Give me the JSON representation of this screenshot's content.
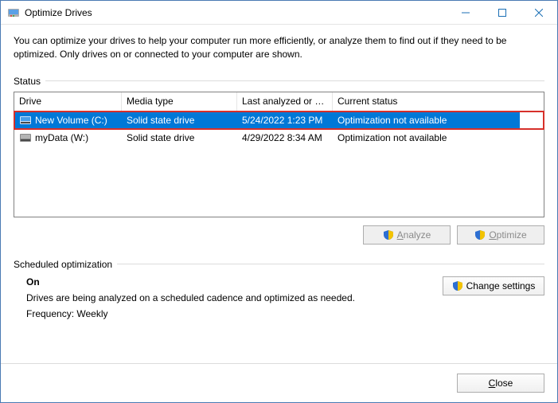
{
  "window": {
    "title": "Optimize Drives",
    "titlebar_bg": "#ffffff",
    "border_color": "#4a7ab3",
    "control_color": "#1b6fb5"
  },
  "description": "You can optimize your drives to help your computer run more efficiently, or analyze them to find out if they need to be optimized. Only drives on or connected to your computer are shown.",
  "sections": {
    "status_label": "Status",
    "sched_label": "Scheduled optimization"
  },
  "grid": {
    "columns": {
      "drive": "Drive",
      "media": "Media type",
      "last": "Last analyzed or o...",
      "status": "Current status"
    },
    "rows": [
      {
        "selected": true,
        "highlight_border": "#d7302a",
        "sel_bg": "#0078d7",
        "sel_fg": "#ffffff",
        "icon": "drive-ssd",
        "drive": "New Volume (C:)",
        "media": "Solid state drive",
        "last": "5/24/2022 1:23 PM",
        "status": "Optimization not available"
      },
      {
        "selected": false,
        "icon": "drive-ssd",
        "drive": "myData (W:)",
        "media": "Solid state drive",
        "last": "4/29/2022 8:34 AM",
        "status": "Optimization not available"
      }
    ]
  },
  "buttons": {
    "analyze": {
      "text": "nalyze",
      "accel": "A",
      "enabled": false,
      "shield": true
    },
    "optimize": {
      "text": "ptimize",
      "accel": "O",
      "enabled": false,
      "shield": true
    },
    "change": {
      "text": "Change settings",
      "shield": true
    },
    "close": {
      "text": "lose",
      "accel": "C"
    }
  },
  "schedule": {
    "on": "On",
    "desc": "Drives are being analyzed on a scheduled cadence and optimized as needed.",
    "freq": "Frequency: Weekly"
  },
  "colors": {
    "divider": "#dcdcdc",
    "grid_border": "#828282",
    "disabled_text": "#8a8a8a",
    "shield_blue": "#2d6fd2",
    "shield_yellow": "#f3c300"
  }
}
